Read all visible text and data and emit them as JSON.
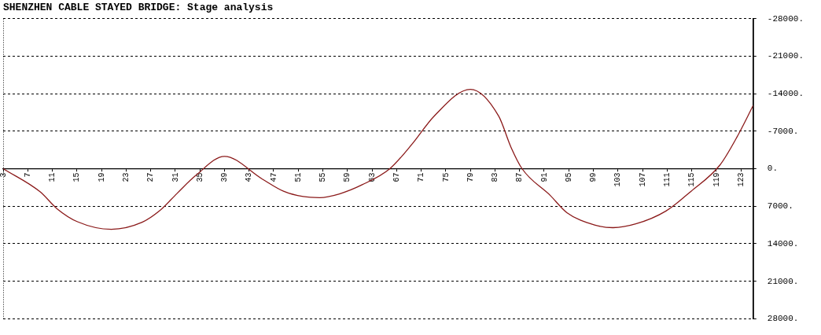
{
  "chart_data": {
    "type": "line",
    "title": "SHENZHEN CABLE STAYED BRIDGE: Stage analysis",
    "x": [
      3,
      9.0,
      11.8,
      15.1,
      20.6,
      25.6,
      28.4,
      31.3,
      34.3,
      39,
      45.1,
      48.6,
      51.8,
      54.5,
      57.7,
      61.4,
      65.9,
      69.6,
      73.1,
      79,
      83.6,
      85.6,
      87.4,
      92.0,
      94.7,
      99.2,
      102.2,
      105.9,
      110.8,
      114.9,
      119.6,
      122.5,
      125
    ],
    "series": [
      {
        "color": "#8b1a1a",
        "values": [
          0,
          4300,
          7500,
          9900,
          11300,
          10000,
          7900,
          4600,
          1300,
          -2300,
          1900,
          4200,
          5200,
          5400,
          4700,
          3000,
          0,
          -4700,
          -9800,
          -14800,
          -9800,
          -4000,
          0,
          5000,
          8200,
          10500,
          11000,
          10300,
          7900,
          4200,
          -700,
          -6200,
          -11800
        ]
      }
    ],
    "xlim": [
      3,
      125
    ],
    "xticks": [
      3,
      7,
      11,
      15,
      19,
      23,
      27,
      31,
      35,
      39,
      43,
      47,
      51,
      55,
      59,
      63,
      67,
      71,
      75,
      79,
      83,
      87,
      91,
      95,
      99,
      103,
      107,
      111,
      115,
      119,
      123
    ],
    "ylim": [
      28000,
      -28000
    ],
    "yticks": [
      {
        "value": -28000,
        "label": "-28000."
      },
      {
        "value": -21000,
        "label": "-21000."
      },
      {
        "value": -14000,
        "label": "-14000."
      },
      {
        "value": -7000,
        "label": "-7000."
      },
      {
        "value": 0,
        "label": "0."
      },
      {
        "value": 7000,
        "label": "7000."
      },
      {
        "value": 14000,
        "label": "14000."
      },
      {
        "value": 21000,
        "label": "21000."
      },
      {
        "value": 28000,
        "label": "28000."
      }
    ],
    "grid": "y",
    "legend": false,
    "marker": "none",
    "line_style": "solid"
  }
}
